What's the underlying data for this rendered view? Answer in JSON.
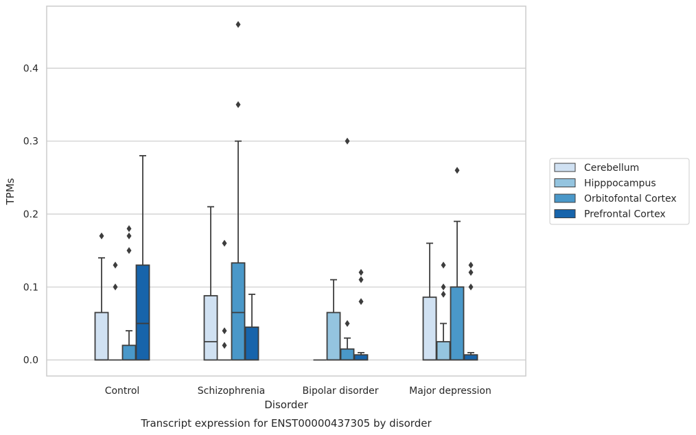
{
  "chart_data": {
    "type": "boxplot",
    "title": "Transcript expression for ENST00000437305 by disorder",
    "xlabel": "Disorder",
    "ylabel": "TPMs",
    "ylim": [
      -0.022,
      0.485
    ],
    "yticks": [
      0.0,
      0.1,
      0.2,
      0.3,
      0.4
    ],
    "ytick_labels": [
      "0.0",
      "0.1",
      "0.2",
      "0.3",
      "0.4"
    ],
    "categories": [
      "Control",
      "Schizophrenia",
      "Bipolar disorder",
      "Major depression"
    ],
    "grid": "horizontal",
    "legend_position": "right",
    "series": [
      {
        "name": "Cerebellum",
        "color": "#d0e1f2",
        "boxes": [
          {
            "q1": 0.0,
            "median": 0.0,
            "q3": 0.065,
            "whislo": 0.0,
            "whishi": 0.14,
            "fliers": [
              0.17
            ]
          },
          {
            "q1": 0.0,
            "median": 0.025,
            "q3": 0.088,
            "whislo": 0.0,
            "whishi": 0.21,
            "fliers": []
          },
          {
            "q1": 0.0,
            "median": 0.0,
            "q3": 0.0,
            "whislo": 0.0,
            "whishi": 0.0,
            "fliers": []
          },
          {
            "q1": 0.0,
            "median": 0.0,
            "q3": 0.086,
            "whislo": 0.0,
            "whishi": 0.16,
            "fliers": []
          }
        ]
      },
      {
        "name": "Hipppocampus",
        "color": "#94c4df",
        "boxes": [
          {
            "q1": 0.0,
            "median": 0.0,
            "q3": 0.0,
            "whislo": 0.0,
            "whishi": 0.0,
            "fliers": [
              0.1,
              0.13
            ]
          },
          {
            "q1": 0.0,
            "median": 0.0,
            "q3": 0.0,
            "whislo": 0.0,
            "whishi": 0.0,
            "fliers": [
              0.02,
              0.04,
              0.16
            ]
          },
          {
            "q1": 0.0,
            "median": 0.0,
            "q3": 0.065,
            "whislo": 0.0,
            "whishi": 0.11,
            "fliers": []
          },
          {
            "q1": 0.0,
            "median": 0.0,
            "q3": 0.025,
            "whislo": 0.0,
            "whishi": 0.05,
            "fliers": [
              0.09,
              0.1,
              0.13
            ]
          }
        ]
      },
      {
        "name": "Orbitofontal Cortex",
        "color": "#4a98c9",
        "boxes": [
          {
            "q1": 0.0,
            "median": 0.0,
            "q3": 0.02,
            "whislo": 0.0,
            "whishi": 0.04,
            "fliers": [
              0.15,
              0.17,
              0.18
            ]
          },
          {
            "q1": 0.0,
            "median": 0.065,
            "q3": 0.133,
            "whislo": 0.0,
            "whishi": 0.3,
            "fliers": [
              0.35,
              0.46
            ]
          },
          {
            "q1": 0.0,
            "median": 0.0,
            "q3": 0.015,
            "whislo": 0.0,
            "whishi": 0.03,
            "fliers": [
              0.05,
              0.3
            ]
          },
          {
            "q1": 0.0,
            "median": 0.0,
            "q3": 0.1,
            "whislo": 0.0,
            "whishi": 0.19,
            "fliers": [
              0.26
            ]
          }
        ]
      },
      {
        "name": "Prefrontal Cortex",
        "color": "#1764ab",
        "boxes": [
          {
            "q1": 0.0,
            "median": 0.05,
            "q3": 0.13,
            "whislo": 0.0,
            "whishi": 0.28,
            "fliers": []
          },
          {
            "q1": 0.0,
            "median": 0.0,
            "q3": 0.045,
            "whislo": 0.0,
            "whishi": 0.09,
            "fliers": []
          },
          {
            "q1": 0.0,
            "median": 0.0,
            "q3": 0.007,
            "whislo": 0.0,
            "whishi": 0.01,
            "fliers": [
              0.08,
              0.11,
              0.12
            ]
          },
          {
            "q1": 0.0,
            "median": 0.0,
            "q3": 0.007,
            "whislo": 0.0,
            "whishi": 0.01,
            "fliers": [
              0.1,
              0.12,
              0.13
            ]
          }
        ]
      }
    ]
  }
}
